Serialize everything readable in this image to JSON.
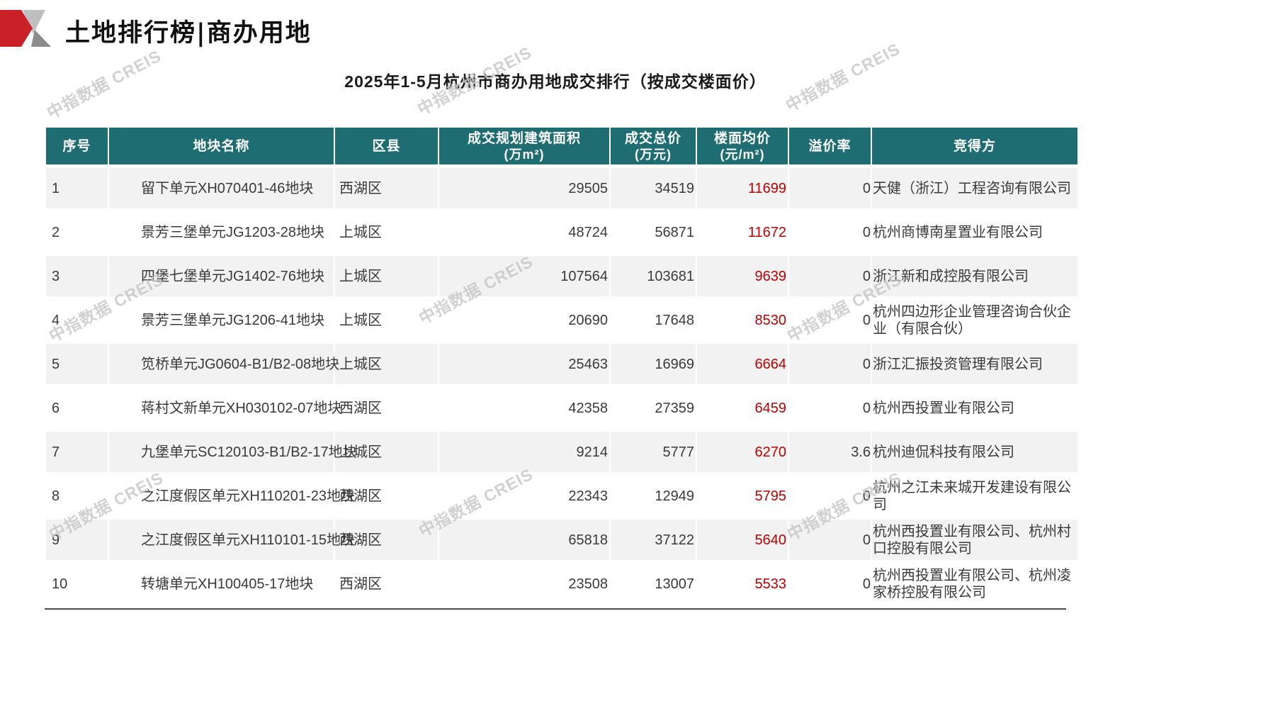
{
  "page": {
    "title": "土地排行榜|商办用地",
    "subtitle": "2025年1-5月杭州市商办用地成交排行（按成交楼面价）",
    "watermark": "中指数据 CREIS"
  },
  "colors": {
    "header_bg": "#1e6d73",
    "value_red": "#c00000",
    "logo_red": "#ca2128",
    "logo_gray": "#bfbfbf",
    "logo_darkgray": "#8c8c8c",
    "stripe": "#f2f2f2",
    "border_dark": "#4d4d4d",
    "watermark": "#c6c6c6"
  },
  "table": {
    "columns": [
      {
        "key": "rank",
        "label": "序号",
        "sublabel": ""
      },
      {
        "key": "name",
        "label": "地块名称",
        "sublabel": ""
      },
      {
        "key": "district",
        "label": "区县",
        "sublabel": ""
      },
      {
        "key": "area",
        "label": "成交规划建筑面积",
        "sublabel": "(万m²)"
      },
      {
        "key": "total",
        "label": "成交总价",
        "sublabel": "(万元)"
      },
      {
        "key": "floor",
        "label": "楼面均价",
        "sublabel": "(元/m²)"
      },
      {
        "key": "premium",
        "label": "溢价率",
        "sublabel": ""
      },
      {
        "key": "bidder",
        "label": "竞得方",
        "sublabel": ""
      }
    ],
    "rows": [
      {
        "rank": "1",
        "name": "留下单元XH070401-46地块",
        "district": "西湖区",
        "area": "29505",
        "total": "34519",
        "floor": "11699",
        "premium": "0",
        "bidder": "天健（浙江）工程咨询有限公司"
      },
      {
        "rank": "2",
        "name": "景芳三堡单元JG1203-28地块",
        "district": "上城区",
        "area": "48724",
        "total": "56871",
        "floor": "11672",
        "premium": "0",
        "bidder": "杭州商博南星置业有限公司"
      },
      {
        "rank": "3",
        "name": "四堡七堡单元JG1402-76地块",
        "district": "上城区",
        "area": "107564",
        "total": "103681",
        "floor": "9639",
        "premium": "0",
        "bidder": "浙江新和成控股有限公司"
      },
      {
        "rank": "4",
        "name": "景芳三堡单元JG1206-41地块",
        "district": "上城区",
        "area": "20690",
        "total": "17648",
        "floor": "8530",
        "premium": "0",
        "bidder": "杭州四边形企业管理咨询合伙企业（有限合伙）"
      },
      {
        "rank": "5",
        "name": "笕桥单元JG0604-B1/B2-08地块",
        "district": "上城区",
        "area": "25463",
        "total": "16969",
        "floor": "6664",
        "premium": "0",
        "bidder": "浙江汇振投资管理有限公司"
      },
      {
        "rank": "6",
        "name": "蒋村文新单元XH030102-07地块",
        "district": "西湖区",
        "area": "42358",
        "total": "27359",
        "floor": "6459",
        "premium": "0",
        "bidder": "杭州西投置业有限公司"
      },
      {
        "rank": "7",
        "name": "九堡单元SC120103-B1/B2-17地块",
        "district": "上城区",
        "area": "9214",
        "total": "5777",
        "floor": "6270",
        "premium": "3.6",
        "bidder": "杭州迪侃科技有限公司"
      },
      {
        "rank": "8",
        "name": "之江度假区单元XH110201-23地块",
        "district": "西湖区",
        "area": "22343",
        "total": "12949",
        "floor": "5795",
        "premium": "0",
        "bidder": "杭州之江未来城开发建设有限公司"
      },
      {
        "rank": "9",
        "name": "之江度假区单元XH110101-15地块",
        "district": "西湖区",
        "area": "65818",
        "total": "37122",
        "floor": "5640",
        "premium": "0",
        "bidder": "杭州西投置业有限公司、杭州村口控股有限公司"
      },
      {
        "rank": "10",
        "name": "转塘单元XH100405-17地块",
        "district": "西湖区",
        "area": "23508",
        "total": "13007",
        "floor": "5533",
        "premium": "0",
        "bidder": "杭州西投置业有限公司、杭州凌家桥控股有限公司"
      }
    ]
  }
}
